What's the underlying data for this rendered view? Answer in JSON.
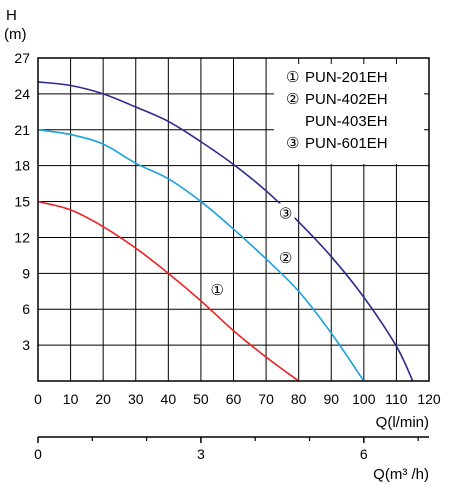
{
  "chart_data": {
    "type": "line",
    "title": "",
    "ylabel": "H",
    "ylabel_unit": "(m)",
    "xlabel": "Q(l/min)",
    "x2label": "Q(m³ /h)",
    "xlim": [
      0,
      120
    ],
    "ylim": [
      0,
      27
    ],
    "x_ticks": [
      "0",
      "10",
      "20",
      "30",
      "40",
      "50",
      "60",
      "70",
      "80",
      "90",
      "100",
      "110",
      "120"
    ],
    "y_ticks": [
      "3",
      "6",
      "9",
      "12",
      "15",
      "18",
      "21",
      "24",
      "27"
    ],
    "x2_ticks": [
      {
        "value": 0,
        "label": "0"
      },
      {
        "value": 3,
        "label": "3"
      },
      {
        "value": 6,
        "label": "6"
      }
    ],
    "x2_minor_ticks": [
      1,
      2,
      4,
      5,
      7
    ],
    "grid": true,
    "legend_position": "top-right",
    "legend": [
      {
        "marker": "①",
        "text": "PUN-201EH"
      },
      {
        "marker": "②",
        "text": "PUN-402EH"
      },
      {
        "marker": "",
        "text": "PUN-403EH"
      },
      {
        "marker": "③",
        "text": "PUN-601EH"
      }
    ],
    "series": [
      {
        "marker": "①",
        "color": "#ee2222",
        "x": [
          0,
          10,
          20,
          30,
          40,
          50,
          60,
          70,
          80
        ],
        "y": [
          15,
          14.3,
          12.9,
          11.1,
          9.0,
          6.7,
          4.2,
          2.0,
          0
        ]
      },
      {
        "marker": "②",
        "color": "#1ba1dc",
        "x": [
          0,
          10,
          20,
          30,
          40,
          50,
          60,
          70,
          80,
          90,
          100
        ],
        "y": [
          21,
          20.6,
          19.8,
          18.2,
          16.9,
          15.0,
          12.7,
          10.2,
          7.5,
          4.0,
          0
        ]
      },
      {
        "marker": "③",
        "color": "#2b2a8c",
        "x": [
          0,
          10,
          20,
          30,
          40,
          50,
          60,
          70,
          80,
          90,
          100,
          110,
          115
        ],
        "y": [
          25,
          24.7,
          24.0,
          22.9,
          21.7,
          20.0,
          18.1,
          15.9,
          13.3,
          10.4,
          7.0,
          2.9,
          0
        ]
      }
    ],
    "curve_labels": [
      {
        "text": "①",
        "x": 55,
        "y": 7.6
      },
      {
        "text": "②",
        "x": 76,
        "y": 10.3
      },
      {
        "text": "③",
        "x": 76,
        "y": 14.0
      }
    ]
  }
}
